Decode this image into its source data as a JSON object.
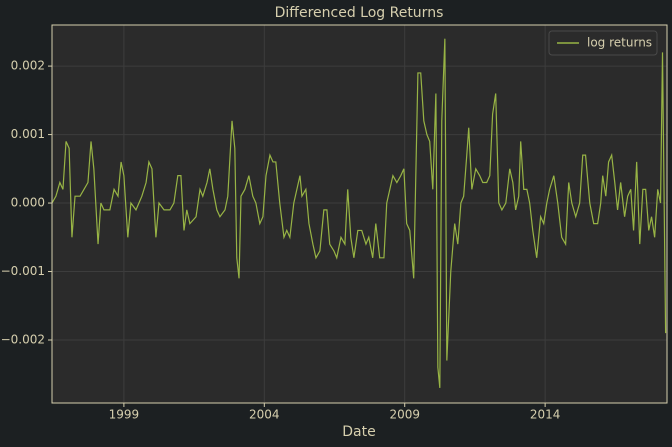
{
  "chart_data": {
    "type": "line",
    "title": "Differenced Log Returns",
    "x_label": "Date",
    "x": [
      1996.44,
      1996.58,
      1996.72,
      1996.83,
      1996.94,
      1997.05,
      1997.15,
      1997.26,
      1997.44,
      1997.58,
      1997.72,
      1997.83,
      1997.93,
      1998.08,
      1998.18,
      1998.29,
      1998.5,
      1998.65,
      1998.79,
      1998.9,
      1999.0,
      1999.14,
      1999.25,
      1999.43,
      1999.64,
      1999.79,
      1999.89,
      2000.0,
      2000.14,
      2000.25,
      2000.43,
      2000.64,
      2000.78,
      2000.92,
      2001.03,
      2001.14,
      2001.24,
      2001.35,
      2001.57,
      2001.71,
      2001.81,
      2001.96,
      2002.06,
      2002.17,
      2002.31,
      2002.42,
      2002.6,
      2002.7,
      2002.85,
      2002.95,
      2003.02,
      2003.1,
      2003.17,
      2003.31,
      2003.45,
      2003.59,
      2003.7,
      2003.84,
      2003.95,
      2004.06,
      2004.2,
      2004.31,
      2004.41,
      2004.55,
      2004.7,
      2004.8,
      2004.91,
      2005.05,
      2005.27,
      2005.34,
      2005.48,
      2005.59,
      2005.73,
      2005.84,
      2005.98,
      2006.12,
      2006.23,
      2006.33,
      2006.48,
      2006.58,
      2006.73,
      2006.87,
      2006.97,
      2007.08,
      2007.19,
      2007.33,
      2007.47,
      2007.62,
      2007.72,
      2007.86,
      2007.97,
      2008.11,
      2008.26,
      2008.36,
      2008.47,
      2008.58,
      2008.72,
      2008.86,
      2008.97,
      2009.07,
      2009.18,
      2009.32,
      2009.47,
      2009.57,
      2009.68,
      2009.79,
      2009.89,
      2010.0,
      2010.11,
      2010.18,
      2010.25,
      2010.32,
      2010.43,
      2010.5,
      2010.64,
      2010.78,
      2010.89,
      2011.0,
      2011.1,
      2011.21,
      2011.28,
      2011.39,
      2011.53,
      2011.67,
      2011.78,
      2011.92,
      2012.03,
      2012.13,
      2012.24,
      2012.35,
      2012.46,
      2012.6,
      2012.74,
      2012.85,
      2012.95,
      2013.06,
      2013.13,
      2013.24,
      2013.35,
      2013.45,
      2013.56,
      2013.7,
      2013.84,
      2013.95,
      2014.06,
      2014.16,
      2014.31,
      2014.45,
      2014.59,
      2014.73,
      2014.84,
      2014.95,
      2015.09,
      2015.23,
      2015.34,
      2015.44,
      2015.59,
      2015.73,
      2015.87,
      2015.98,
      2016.05,
      2016.16,
      2016.26,
      2016.37,
      2016.48,
      2016.58,
      2016.69,
      2016.83,
      2016.94,
      2017.05,
      2017.15,
      2017.26,
      2017.37,
      2017.48,
      2017.58,
      2017.69,
      2017.79,
      2017.9,
      2018.01,
      2018.11,
      2018.18,
      2018.29
    ],
    "series": [
      {
        "name": "log returns",
        "color": "#98b445",
        "values": [
          0.0,
          0.0001,
          0.0003,
          0.0002,
          0.0009,
          0.0008,
          -0.0005,
          0.0001,
          0.0001,
          0.0002,
          0.0003,
          0.0009,
          0.0005,
          -0.0006,
          0.0,
          -0.0001,
          -0.0001,
          0.0002,
          0.0001,
          0.0006,
          0.0004,
          -0.0005,
          0.0,
          -0.0001,
          0.0001,
          0.0003,
          0.0006,
          0.0005,
          -0.0005,
          0.0,
          -0.0001,
          -0.0001,
          0.0,
          0.0004,
          0.0004,
          -0.0004,
          -0.0001,
          -0.0003,
          -0.0002,
          0.0002,
          0.0001,
          0.0003,
          0.0005,
          0.0002,
          -0.0001,
          -0.0002,
          -0.0001,
          0.0001,
          0.0012,
          0.0008,
          -0.0008,
          -0.0011,
          0.0001,
          0.0002,
          0.0004,
          0.0001,
          0.0,
          -0.0003,
          -0.0002,
          0.0004,
          0.0007,
          0.0006,
          0.0006,
          0.0,
          -0.0005,
          -0.0004,
          -0.0005,
          0.0,
          0.0004,
          0.0001,
          0.0002,
          -0.0003,
          -0.0006,
          -0.0008,
          -0.0007,
          -0.0001,
          -0.0001,
          -0.0006,
          -0.0007,
          -0.0008,
          -0.0005,
          -0.0006,
          0.0002,
          -0.0005,
          -0.0008,
          -0.0004,
          -0.0004,
          -0.0006,
          -0.0005,
          -0.0008,
          -0.0003,
          -0.0008,
          -0.0008,
          0.0,
          0.0002,
          0.0004,
          0.0003,
          0.0004,
          0.0005,
          -0.0003,
          -0.0004,
          -0.0011,
          0.0019,
          0.0019,
          0.0012,
          0.001,
          0.0009,
          0.0002,
          0.0016,
          -0.0024,
          -0.0027,
          0.0012,
          0.0024,
          -0.0023,
          -0.001,
          -0.0003,
          -0.0006,
          0.0,
          0.0001,
          0.0007,
          0.0011,
          0.0002,
          0.0005,
          0.0004,
          0.0003,
          0.0003,
          0.0004,
          0.0013,
          0.0016,
          0.0,
          -0.0001,
          0.0,
          0.0005,
          0.0003,
          -0.0001,
          0.0001,
          0.0009,
          0.0002,
          0.0002,
          0.0,
          -0.0004,
          -0.0008,
          -0.0002,
          -0.0003,
          0.0,
          0.0002,
          0.0004,
          0.0,
          -0.0005,
          -0.0006,
          0.0003,
          0.0,
          -0.0002,
          0.0,
          0.0007,
          0.0007,
          0.0,
          -0.0003,
          -0.0003,
          0.0,
          0.0004,
          0.0001,
          0.0006,
          0.0007,
          0.0003,
          -0.0001,
          0.0003,
          -0.0002,
          0.0001,
          0.0002,
          -0.0004,
          0.0006,
          -0.0006,
          0.0002,
          0.0002,
          -0.0004,
          -0.0002,
          -0.0005,
          0.0002,
          0.0,
          0.0022,
          -0.0019
        ]
      }
    ],
    "xlim": [
      1996.44,
      2018.34
    ],
    "xticks": [
      1999,
      2004,
      2009,
      2014
    ],
    "ylim": [
      -0.00292,
      0.0026
    ],
    "yticks": [
      {
        "value": -0.002,
        "label": "−0.002"
      },
      {
        "value": -0.001,
        "label": "−0.001"
      },
      {
        "value": 0.0,
        "label": "0.000"
      },
      {
        "value": 0.001,
        "label": "0.001"
      },
      {
        "value": 0.002,
        "label": "0.002"
      }
    ],
    "grid": true,
    "legend_position": "upper right"
  }
}
